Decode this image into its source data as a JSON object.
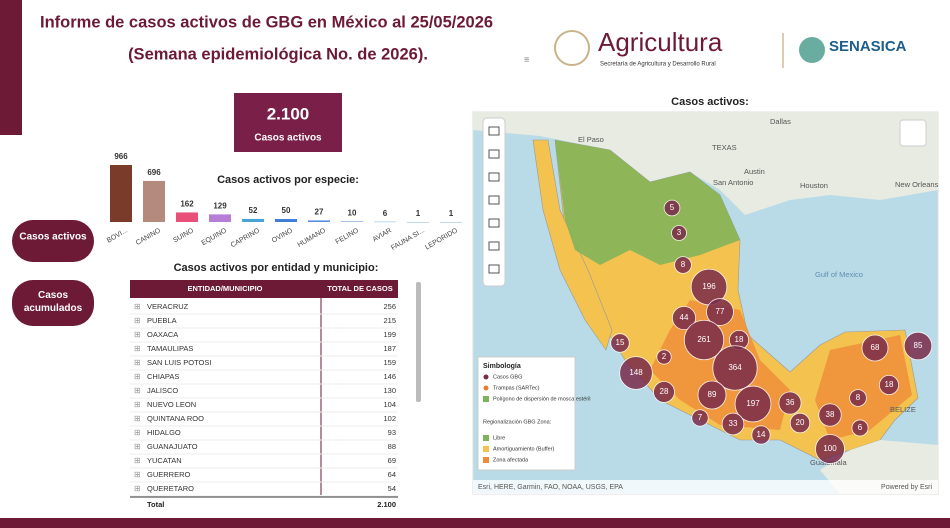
{
  "header": {
    "title": "Informe de casos activos de GBG en México al 25/05/2026",
    "subtitle": "(Semana epidemiológica No. de 2026)."
  },
  "logos": {
    "agency": "Agricultura",
    "agency_subtitle": "Secretaría de Agricultura y Desarrollo Rural",
    "partner": "SENASICA"
  },
  "kpi": {
    "value": "2.100",
    "label": "Casos activos"
  },
  "buttons": [
    "Casos activos",
    "Casos acumulados"
  ],
  "chart_data": {
    "type": "bar",
    "title": "Casos activos por especie:",
    "categories": [
      "BOVI...",
      "CANINO",
      "SUINO",
      "EQUINO",
      "CAPRINO",
      "OVINO",
      "HUMANO",
      "FELINO",
      "AVIAR",
      "FAUNA SI...",
      "LEPORIDO"
    ],
    "values": [
      966,
      696,
      162,
      129,
      52,
      50,
      27,
      10,
      6,
      1,
      1
    ],
    "colors": [
      "#7b3b2b",
      "#b48a7c",
      "#e8507a",
      "#b57fd6",
      "#49a5d8",
      "#3b7dd8",
      "#5a8de0",
      "#6a9bd8",
      "#7ab0e0",
      "#7ab0e0",
      "#7ab0e0"
    ]
  },
  "table": {
    "title": "Casos activos por entidad y municipio:",
    "columns": [
      "ENTIDAD/MUNICIPIO",
      "TOTAL DE CASOS"
    ],
    "rows": [
      [
        "VERACRUZ",
        256
      ],
      [
        "PUEBLA",
        215
      ],
      [
        "OAXACA",
        199
      ],
      [
        "TAMAULIPAS",
        187
      ],
      [
        "SAN LUIS POTOSI",
        159
      ],
      [
        "CHIAPAS",
        146
      ],
      [
        "JALISCO",
        130
      ],
      [
        "NUEVO LEON",
        104
      ],
      [
        "QUINTANA ROO",
        102
      ],
      [
        "HIDALGO",
        93
      ],
      [
        "GUANAJUATO",
        88
      ],
      [
        "YUCATAN",
        69
      ],
      [
        "GUERRERO",
        64
      ],
      [
        "QUERETARO",
        54
      ]
    ],
    "total": [
      "Total",
      "2.100"
    ]
  },
  "map": {
    "title": "Casos activos:",
    "places": [
      "El Paso",
      "Dallas",
      "TEXAS",
      "Austin",
      "San Antonio",
      "Houston",
      "New Orleans",
      "Gulf of Mexico",
      "BELIZE",
      "Guatemala"
    ],
    "cases": [
      5,
      3,
      8,
      196,
      77,
      44,
      261,
      18,
      15,
      2,
      364,
      148,
      28,
      89,
      197,
      36,
      7,
      33,
      14,
      20,
      38,
      8,
      6,
      100,
      68,
      85,
      18
    ],
    "legend": {
      "title": "Simbología",
      "items": [
        "Casos GBG",
        "Trampas (SARTec)",
        "Polígono de dispersión de mosca estéril"
      ],
      "zone_title": "Regionalización GBG Zona:",
      "zones": [
        "Libre",
        "Amortiguamiento (Buffer)",
        "Zona afectada"
      ]
    },
    "attribution": "Esri, HERE, Garmin, FAO, NOAA, USGS, EPA",
    "powered": "Powered by Esri"
  }
}
